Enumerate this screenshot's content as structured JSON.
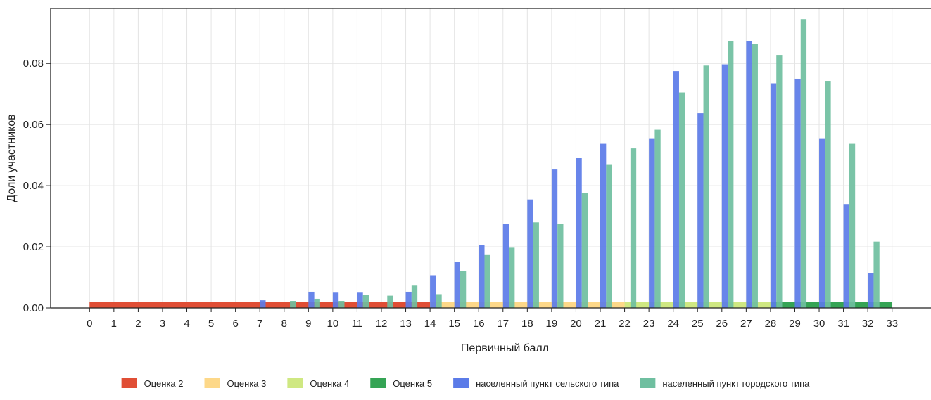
{
  "chart_data": {
    "type": "bar",
    "title": "",
    "xlabel": "Первичный балл",
    "ylabel": "Доли участников",
    "x": [
      0,
      1,
      2,
      3,
      4,
      5,
      6,
      7,
      8,
      9,
      10,
      11,
      12,
      13,
      14,
      15,
      16,
      17,
      18,
      19,
      20,
      21,
      22,
      23,
      24,
      25,
      26,
      27,
      28,
      29,
      30,
      31,
      32,
      33
    ],
    "x_ticks": [
      "0",
      "1",
      "2",
      "3",
      "4",
      "5",
      "6",
      "7",
      "8",
      "9",
      "10",
      "11",
      "12",
      "13",
      "14",
      "15",
      "16",
      "17",
      "18",
      "19",
      "20",
      "21",
      "22",
      "23",
      "24",
      "25",
      "26",
      "27",
      "28",
      "29",
      "30",
      "31",
      "32",
      "33"
    ],
    "ylim": [
      0,
      0.098
    ],
    "y_ticks": [
      0.0,
      0.02,
      0.04,
      0.06,
      0.08
    ],
    "y_tick_labels": [
      "0.00",
      "0.02",
      "0.04",
      "0.06",
      "0.08"
    ],
    "grid": true,
    "legend_position": "bottom",
    "series": [
      {
        "name": "населенный пункт сельского типа",
        "color": "#5b7be8",
        "values": [
          0,
          0,
          0,
          0,
          0,
          0,
          0,
          0.0025,
          0,
          0.0053,
          0.005,
          0.005,
          0,
          0.0053,
          0.0107,
          0.015,
          0.0207,
          0.0275,
          0.0355,
          0.0453,
          0.049,
          0.0537,
          0,
          0.0553,
          0.0775,
          0.0637,
          0.0797,
          0.0873,
          0.0735,
          0.075,
          0.0553,
          0.034,
          0.0115,
          0
        ]
      },
      {
        "name": "населенный пункт городского типа",
        "color": "#6fbfa0",
        "values": [
          0,
          0,
          0,
          0,
          0,
          0,
          0,
          0,
          0.0023,
          0.003,
          0.0023,
          0.0043,
          0.004,
          0.0073,
          0.0045,
          0.012,
          0.0173,
          0.0197,
          0.028,
          0.0275,
          0.0375,
          0.0468,
          0.0522,
          0.0583,
          0.0705,
          0.0793,
          0.0873,
          0.0863,
          0.0828,
          0.0945,
          0.0743,
          0.0537,
          0.0217,
          0
        ]
      }
    ],
    "grade_bands": [
      {
        "name": "Оценка 2",
        "color": "#e04e35",
        "from": 0,
        "to": 14
      },
      {
        "name": "Оценка 3",
        "color": "#fdd889",
        "from": 14,
        "to": 22
      },
      {
        "name": "Оценка 4",
        "color": "#cfe882",
        "from": 22,
        "to": 28
      },
      {
        "name": "Оценка 5",
        "color": "#35a455",
        "from": 28,
        "to": 33
      }
    ]
  }
}
